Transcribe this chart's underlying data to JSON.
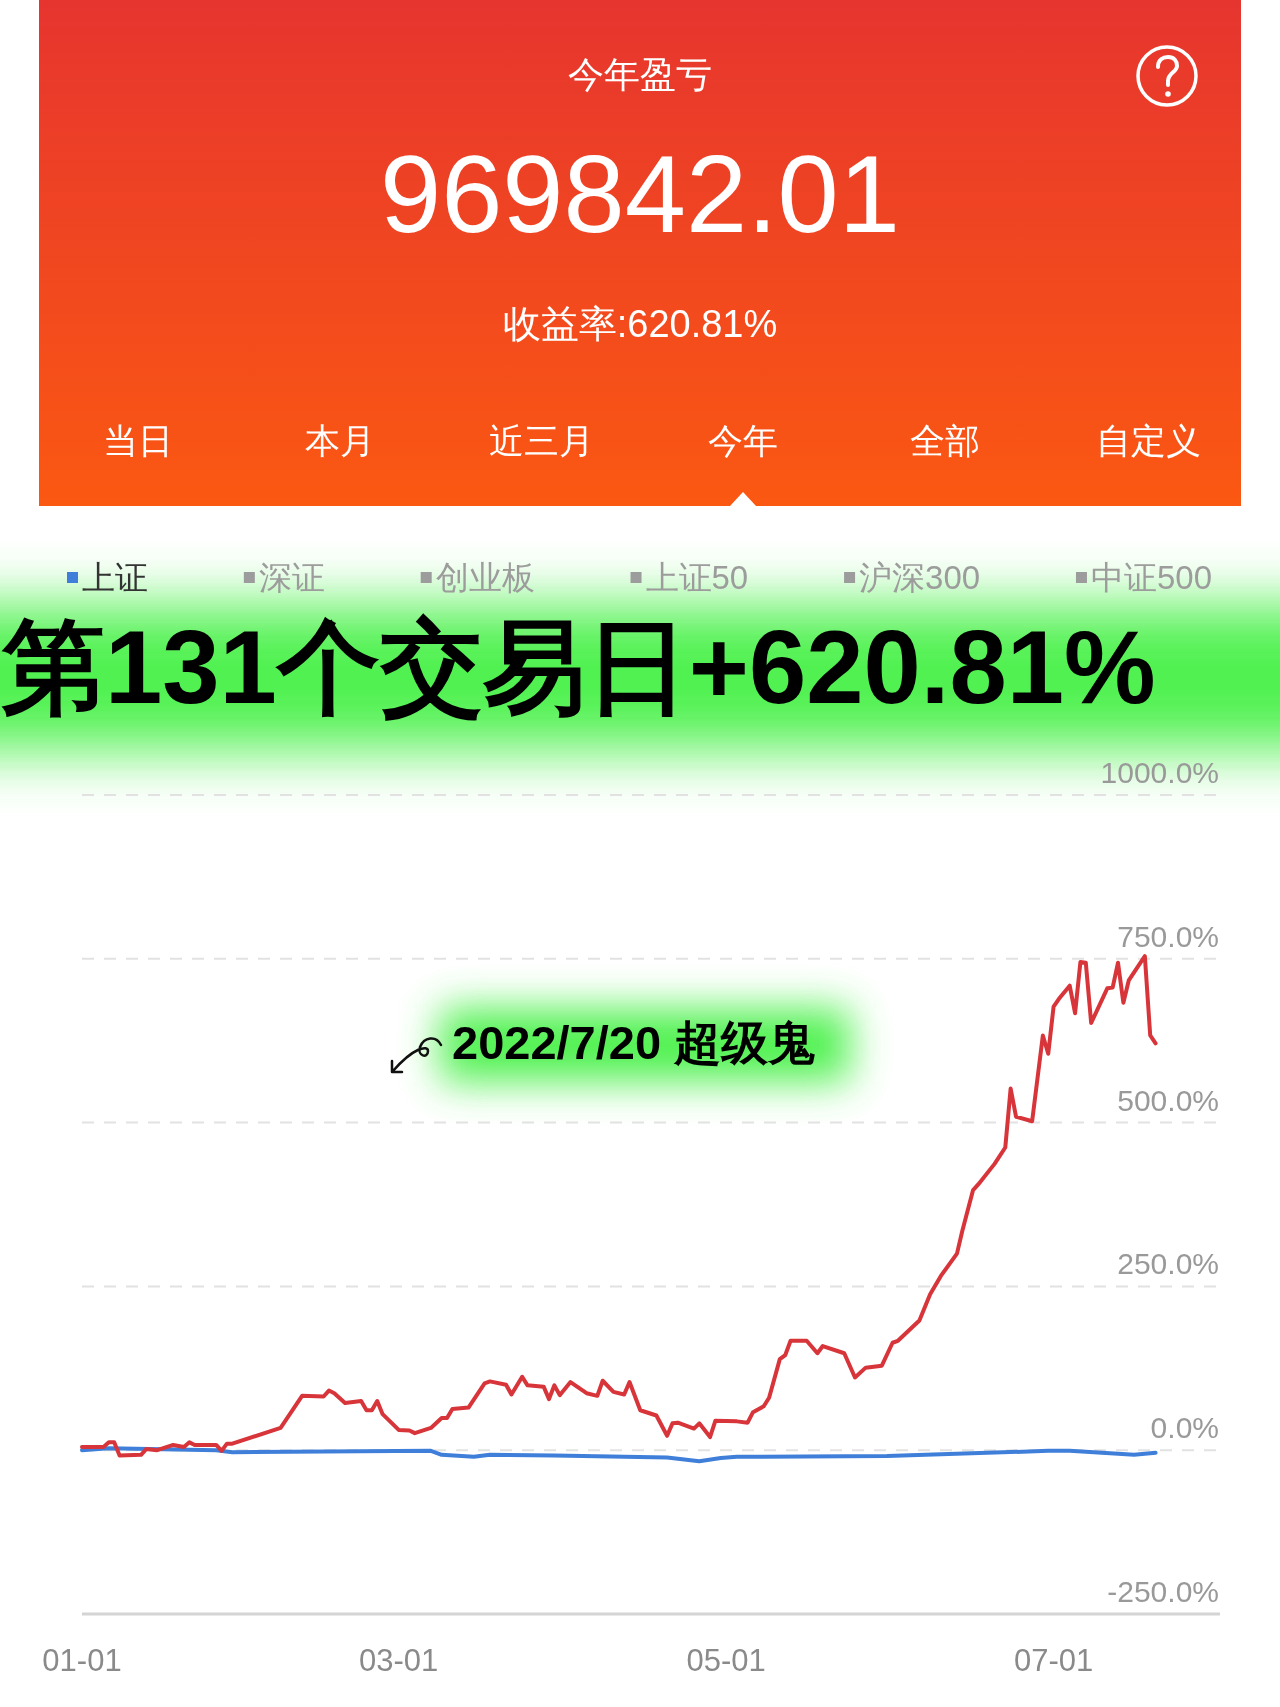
{
  "chart_data": {
    "type": "line",
    "title": "今年盈亏",
    "annotations": [
      "969842.01",
      "收益率:620.81%",
      "当日",
      "本月",
      "近三月",
      "今年",
      "全部",
      "自定义",
      "第131个交易日+620.81%",
      "2022/7/20 超级鬼"
    ],
    "xlim": [
      "--01-01",
      "--08-01"
    ],
    "xticks": [
      {
        "value": "--01-01",
        "label": "01-01"
      },
      {
        "value": "--03-01",
        "label": "03-01"
      },
      {
        "value": "--05-01",
        "label": "05-01"
      },
      {
        "value": "--07-01",
        "label": "07-01"
      }
    ],
    "ylim": [
      -250,
      1000
    ],
    "yticks": [
      {
        "value": -250,
        "label": "-250.0%"
      },
      {
        "value": 0,
        "label": "0.0%"
      },
      {
        "value": 250,
        "label": "250.0%"
      },
      {
        "value": 500,
        "label": "500.0%"
      },
      {
        "value": 750,
        "label": "750.0%"
      },
      {
        "value": 1000,
        "label": "1000.0%"
      }
    ],
    "grid": "y",
    "legend": "top",
    "series": [
      {
        "name": "上证",
        "color": "#3f7fd9",
        "x": [
          "--01-01",
          "--01-06",
          "--01-26",
          "--01-29",
          "--03-07",
          "--03-09",
          "--03-15",
          "--03-18",
          "--03-30",
          "--04-20",
          "--04-26",
          "--04-30",
          "--05-03",
          "--05-31",
          "--06-30",
          "--07-04",
          "--07-16",
          "--07-20"
        ],
        "values": [
          0,
          3,
          0,
          -3,
          -1,
          -7,
          -10,
          -7,
          -8,
          -11,
          -17,
          -12,
          -10,
          -9,
          -1,
          -1,
          -7,
          -4
        ]
      },
      {
        "color": "#d8353b",
        "x": [
          "--01-01",
          "--01-05",
          "--01-06",
          "--01-07",
          "--01-08",
          "--01-12",
          "--01-13",
          "--01-15",
          "--01-18",
          "--01-20",
          "--01-21",
          "--01-22",
          "--01-26",
          "--01-27",
          "--01-28",
          "--01-29",
          "--02-07",
          "--02-11",
          "--02-15",
          "--02-16",
          "--02-17",
          "--02-19",
          "--02-22",
          "--02-23",
          "--02-24",
          "--02-25",
          "--02-26",
          "--03-01",
          "--03-03",
          "--03-04",
          "--03-07",
          "--03-09",
          "--03-10",
          "--03-11",
          "--03-14",
          "--03-17",
          "--03-18",
          "--03-21",
          "--03-22",
          "--03-24",
          "--03-25",
          "--03-28",
          "--03-29",
          "--03-30",
          "--03-31",
          "--04-02",
          "--04-05",
          "--04-07",
          "--04-08",
          "--04-10",
          "--04-12",
          "--04-13",
          "--04-15",
          "--04-18",
          "--04-20",
          "--04-21",
          "--04-22",
          "--04-25",
          "--04-26",
          "--04-28",
          "--04-29",
          "--05-03",
          "--05-05",
          "--05-06",
          "--05-08",
          "--05-09",
          "--05-11",
          "--05-12",
          "--05-13",
          "--05-16",
          "--05-18",
          "--05-19",
          "--05-23",
          "--05-25",
          "--05-27",
          "--05-30",
          "--06-01",
          "--06-02",
          "--06-06",
          "--06-08",
          "--06-10",
          "--06-13",
          "--06-14",
          "--06-16",
          "--06-17",
          "--06-20",
          "--06-22",
          "--06-23",
          "--06-24",
          "--06-27",
          "--06-29",
          "--06-30",
          "--07-01",
          "--07-02",
          "--07-04",
          "--07-05",
          "--07-06",
          "--07-07",
          "--07-08",
          "--07-11",
          "--07-12",
          "--07-13",
          "--07-14",
          "--07-15",
          "--07-18",
          "--07-19",
          "--07-20"
        ],
        "values": [
          5,
          5,
          12,
          12,
          -8,
          -7,
          2,
          0,
          8,
          5,
          12,
          8,
          8,
          -1,
          10,
          10,
          34,
          83,
          82,
          91,
          87,
          72,
          75,
          61,
          61,
          75,
          55,
          31,
          30,
          26,
          34,
          49,
          49,
          63,
          65,
          102,
          105,
          100,
          85,
          112,
          99,
          97,
          78,
          99,
          84,
          104,
          87,
          83,
          106,
          89,
          85,
          104,
          61,
          53,
          22,
          41,
          42,
          33,
          41,
          20,
          45,
          44,
          42,
          58,
          67,
          80,
          139,
          145,
          167,
          167,
          148,
          159,
          148,
          111,
          126,
          129,
          164,
          167,
          198,
          238,
          266,
          300,
          335,
          397,
          406,
          437,
          462,
          552,
          509,
          502,
          633,
          605,
          677,
          689,
          709,
          667,
          745,
          744,
          652,
          705,
          706,
          744,
          683,
          717,
          754,
          633,
          621
        ]
      },
      {
        "name": "深证",
        "color": "#9c9c9c"
      },
      {
        "name": "创业板",
        "color": "#9c9c9c"
      },
      {
        "name": "上证50",
        "color": "#9c9c9c"
      },
      {
        "name": "沪深300",
        "color": "#9c9c9c"
      },
      {
        "name": "中证500",
        "color": "#9c9c9c"
      }
    ]
  }
}
